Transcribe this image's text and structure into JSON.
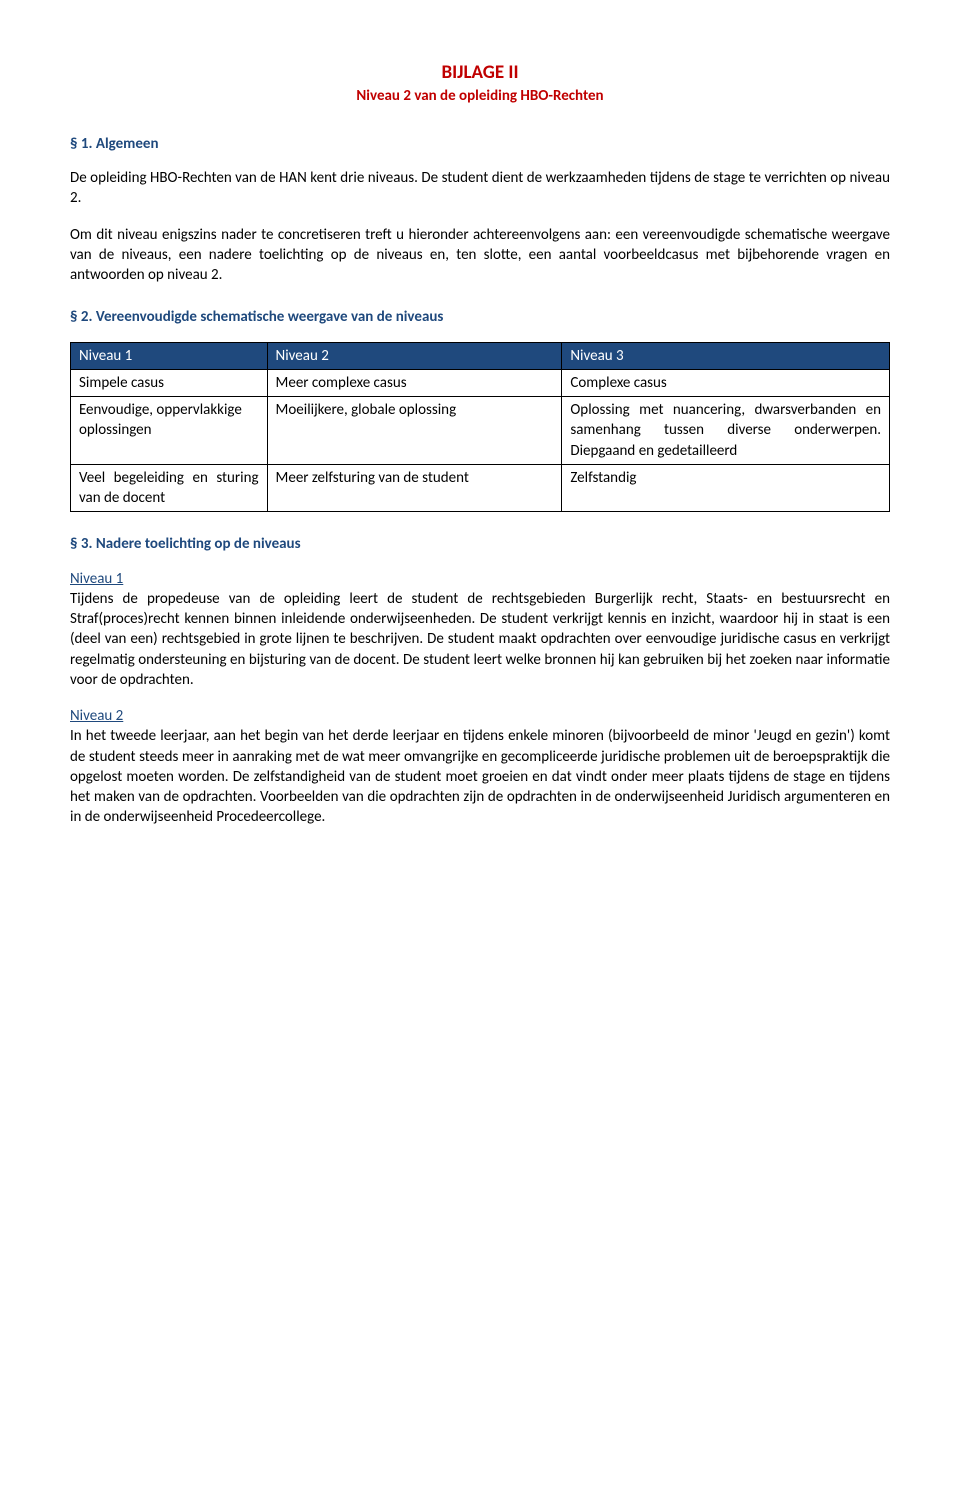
{
  "colors": {
    "red": "#c00000",
    "blue": "#1f497d",
    "table_header_bg": "#1f497d",
    "table_header_fg": "#ffffff",
    "body_text": "#000000",
    "background": "#ffffff"
  },
  "typography": {
    "body_family": "Calibri",
    "body_size_pt": 11,
    "title_size_pt": 14,
    "line_height": 1.35
  },
  "title": "BIJLAGE II",
  "subtitle": "Niveau 2 van de opleiding HBO-Rechten",
  "sec1": {
    "head": "§ 1. Algemeen",
    "p1": "De opleiding HBO-Rechten van de HAN kent drie niveaus. De student dient de werkzaamheden tijdens de stage te verrichten op niveau 2.",
    "p2": "Om dit niveau enigszins nader te concretiseren treft u hieronder achtereenvolgens aan: een vereenvoudigde schematische weergave van de niveaus, een nadere toelichting op de niveaus en, ten slotte, een aantal voorbeeldcasus met bijbehorende vragen en antwoorden op niveau 2."
  },
  "sec2": {
    "head": "§ 2. Vereenvoudigde schematische weergave van de niveaus",
    "table": {
      "type": "table",
      "columns": [
        "Niveau 1",
        "Niveau 2",
        "Niveau 3"
      ],
      "col_widths_pct": [
        24,
        36,
        40
      ],
      "header_bg": "#1f497d",
      "header_fg": "#ffffff",
      "border_color": "#000000",
      "rows": [
        [
          "Simpele casus",
          "Meer complexe casus",
          "Complexe casus"
        ],
        [
          "Eenvoudige, oppervlakkige oplossingen",
          "Moeilijkere, globale oplossing",
          "Oplossing met nuancering, dwarsverbanden en samenhang tussen diverse onderwerpen. Diepgaand en gedetailleerd"
        ],
        [
          "Veel begeleiding en sturing van de docent",
          "Meer zelfsturing van de student",
          "Zelfstandig"
        ]
      ]
    }
  },
  "sec3": {
    "head": "§ 3. Nadere toelichting op de niveaus",
    "n1_label": "Niveau 1",
    "n1_body": "Tijdens de propedeuse van de opleiding leert de student de rechtsgebieden Burgerlijk recht, Staats- en bestuursrecht en Straf(proces)recht kennen binnen inleidende onderwijseenheden. De student verkrijgt kennis en inzicht, waardoor hij in staat is een (deel van een) rechtsgebied in grote lijnen te beschrijven. De student maakt opdrachten over eenvoudige juridische casus en verkrijgt regelmatig ondersteuning en bijsturing van de docent. De student leert welke bronnen hij kan gebruiken bij het zoeken naar informatie voor de opdrachten.",
    "n2_label": "Niveau 2",
    "n2_body": "In het tweede leerjaar, aan het begin van het derde leerjaar en tijdens enkele minoren (bijvoorbeeld de minor 'Jeugd en gezin') komt de student steeds meer in aanraking met de wat meer omvangrijke en gecompliceerde juridische problemen uit de beroepspraktijk die opgelost moeten worden. De zelfstandigheid van de student moet groeien en dat vindt onder meer plaats tijdens de stage en tijdens het maken van de opdrachten. Voorbeelden van die opdrachten zijn de opdrachten in de onderwijseenheid Juridisch argumenteren en in de onderwijseenheid Procedeercollege."
  }
}
